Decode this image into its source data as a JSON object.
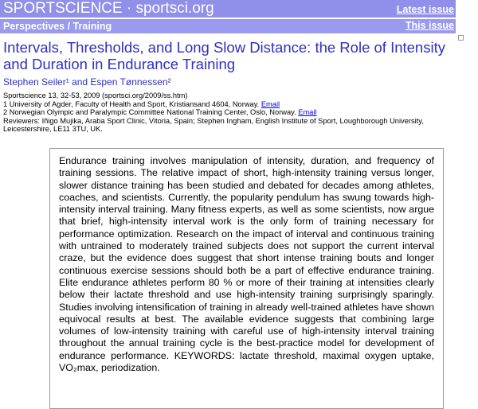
{
  "header": {
    "site": "SPORTSCIENCE · sportsci.org",
    "latest_link": "Latest issue",
    "section": "Perspectives / Training",
    "issue_link": "This issue"
  },
  "article": {
    "title": "Intervals, Thresholds, and Long Slow Distance:  the Role of Intensity and Duration in Endurance Training",
    "authors": "Stephen Seiler¹ and Espen Tønnessen²",
    "meta": [
      {
        "text": "Sportscience 13, 32-53, 2009 (sportsci.org/2009/ss.htm)"
      },
      {
        "text": "1 University of Agder, Faculty of Health and Sport, Kristiansand 4604, Norway. ",
        "link": "Email"
      },
      {
        "text": "2 Norwegian Olympic and Paralympic Committee National Training Center, Oslo,  Norway. ",
        "link": "Email"
      },
      {
        "text": "Reviewers: Iñigo Mujika, Araba Sport Clinic, Vitoria, Spain; Stephen Ingham, English Institute of Sport, Loughborough University, Leicestershire, LE11 3TU, UK."
      }
    ],
    "abstract": "Endurance training involves manipulation of intensity, duration, and frequency of training sessions.  The relative impact of short, high-intensity training versus longer, slower distance training has been studied and debated for decades among athletes, coaches, and scientists.  Currently, the popularity pendulum has swung towards high-intensity interval training.  Many fitness experts, as well as some scientists, now argue that brief, high-intensity interval work is the only form of training necessary for performance optimization.  Research on the impact of interval and continuous training with untrained to moderately trained subjects does not support the current interval craze, but the evidence does suggest that short intense training bouts and longer continuous exercise sessions should both be a part of effective endurance training.  Elite endurance athletes perform 80 % or more of their training at intensities clearly below their lactate threshold and use high-intensity training surprisingly sparingly.  Studies involving intensification of training in already well-trained athletes have shown equivocal results at best.  The available evidence suggests that combining large volumes of low-intensity training with careful use of high-intensity interval training throughout the annual training cycle is the best-practice model for development of endurance performance. KEYWORDS: lactate threshold, maximal oxygen uptake, VO₂max, periodization."
  }
}
